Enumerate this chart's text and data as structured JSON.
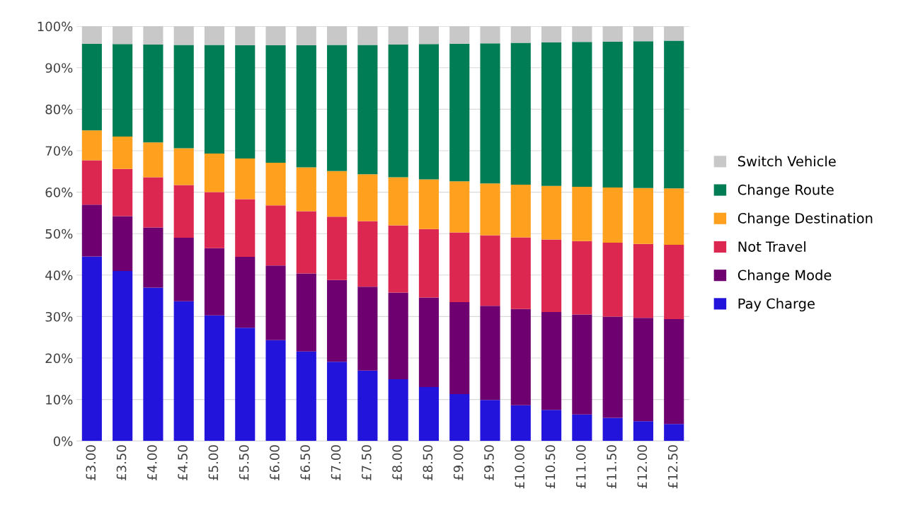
{
  "chart_data": {
    "type": "bar",
    "stacked": true,
    "categories": [
      "£3.00",
      "£3.50",
      "£4.00",
      "£4.50",
      "£5.00",
      "£5.50",
      "£6.00",
      "£6.50",
      "£7.00",
      "£7.50",
      "£8.00",
      "£8.50",
      "£9.00",
      "£9.50",
      "£10.00",
      "£10.50",
      "£11.00",
      "£11.50",
      "£12.00",
      "£12.50"
    ],
    "series": [
      {
        "name": "Pay Charge",
        "color": "#2314dc",
        "values": [
          44.5,
          41,
          37,
          33.7,
          30.3,
          27.3,
          24.3,
          21.6,
          19.1,
          17,
          14.9,
          13,
          11.3,
          9.9,
          8.6,
          7.5,
          6.4,
          5.6,
          4.8,
          4.1
        ]
      },
      {
        "name": "Change Mode",
        "color": "#6e0070",
        "values": [
          12.5,
          13.2,
          14.5,
          15.3,
          16.2,
          17.1,
          18.0,
          18.8,
          19.7,
          20.2,
          20.9,
          21.6,
          22.2,
          22.7,
          23.2,
          23.6,
          24.1,
          24.4,
          24.9,
          25.3
        ]
      },
      {
        "name": "Not Travel",
        "color": "#dc2850",
        "values": [
          10.7,
          11.4,
          12.1,
          12.7,
          13.5,
          13.9,
          14.5,
          15.0,
          15.3,
          15.8,
          16.2,
          16.5,
          16.8,
          17.0,
          17.3,
          17.5,
          17.7,
          17.8,
          17.8,
          17.9
        ]
      },
      {
        "name": "Change Destination",
        "color": "#ffa01e",
        "values": [
          7.2,
          7.8,
          8.4,
          8.9,
          9.3,
          9.8,
          10.3,
          10.6,
          11.0,
          11.3,
          11.6,
          12.0,
          12.3,
          12.5,
          12.7,
          12.9,
          13.1,
          13.3,
          13.5,
          13.6
        ]
      },
      {
        "name": "Change Route",
        "color": "#007d55",
        "values": [
          20.9,
          22.3,
          23.6,
          24.9,
          26.2,
          27.3,
          28.3,
          29.4,
          30.4,
          31.2,
          32.0,
          32.6,
          33.2,
          33.8,
          34.2,
          34.6,
          34.9,
          35.2,
          35.4,
          35.6
        ]
      },
      {
        "name": "Switch Vehicle",
        "color": "#c8c8c8",
        "values": [
          4.2,
          4.3,
          4.4,
          4.5,
          4.5,
          4.6,
          4.6,
          4.6,
          4.5,
          4.5,
          4.4,
          4.3,
          4.2,
          4.1,
          4.0,
          3.9,
          3.8,
          3.7,
          3.6,
          3.5
        ]
      }
    ],
    "ylim": [
      0,
      100
    ],
    "yticks": [
      {
        "value": 0,
        "label": "0%"
      },
      {
        "value": 10,
        "label": "10%"
      },
      {
        "value": 20,
        "label": "20%"
      },
      {
        "value": 30,
        "label": "30%"
      },
      {
        "value": 40,
        "label": "40%"
      },
      {
        "value": 50,
        "label": "50%"
      },
      {
        "value": 60,
        "label": "60%"
      },
      {
        "value": 70,
        "label": "70%"
      },
      {
        "value": 80,
        "label": "80%"
      },
      {
        "value": 90,
        "label": "90%"
      },
      {
        "value": 100,
        "label": "100%"
      }
    ],
    "grid": "y",
    "legend": "right"
  }
}
